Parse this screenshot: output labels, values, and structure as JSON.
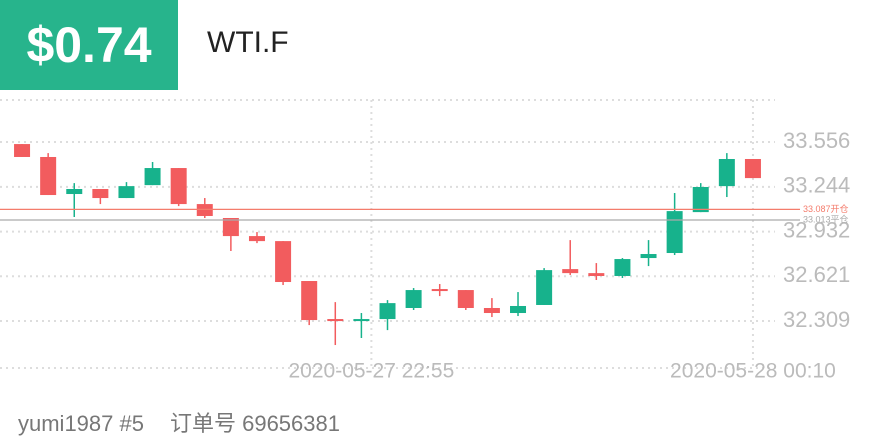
{
  "header": {
    "amount": "$0.74",
    "symbol": "WTI.F"
  },
  "footer": {
    "user": "yumi1987 #5",
    "order": "订单号 69656381"
  },
  "chart_data": {
    "type": "candlestick",
    "up_color": "#17b28c",
    "down_color": "#f25c5e",
    "categories": [
      null,
      null,
      null,
      null,
      null,
      null,
      null,
      null,
      null,
      null,
      null,
      null,
      null,
      "2020-05-27 22:55",
      null,
      null,
      null,
      null,
      null,
      null,
      null,
      null,
      null,
      null,
      null,
      null,
      null,
      null,
      "2020-05-28 00:10"
    ],
    "open": [
      33.542,
      33.452,
      33.194,
      33.229,
      33.166,
      33.256,
      33.375,
      33.124,
      33.027,
      32.901,
      32.866,
      32.588,
      32.323,
      32.309,
      32.323,
      32.4,
      32.532,
      32.525,
      32.4,
      32.365,
      32.421,
      32.671,
      32.643,
      32.623,
      32.748,
      32.783,
      33.068,
      33.249,
      33.438
    ],
    "high": [
      33.542,
      33.479,
      33.27,
      33.229,
      33.277,
      33.417,
      33.375,
      33.166,
      33.027,
      32.929,
      32.866,
      32.588,
      32.441,
      32.365,
      32.455,
      32.539,
      32.567,
      32.525,
      32.469,
      32.511,
      32.678,
      32.873,
      32.713,
      32.748,
      32.873,
      33.201,
      33.27,
      33.479,
      33.438
    ],
    "low": [
      33.452,
      33.187,
      33.034,
      33.124,
      33.166,
      33.256,
      33.11,
      33.027,
      32.797,
      32.852,
      32.56,
      32.281,
      32.142,
      32.191,
      32.246,
      32.386,
      32.483,
      32.386,
      32.337,
      32.344,
      32.421,
      32.63,
      32.595,
      32.609,
      32.692,
      32.769,
      33.068,
      33.173,
      33.305
    ],
    "close": [
      33.452,
      33.187,
      33.229,
      33.166,
      33.249,
      33.375,
      33.124,
      33.041,
      32.901,
      32.866,
      32.581,
      32.316,
      32.309,
      32.323,
      32.434,
      32.525,
      32.518,
      32.4,
      32.365,
      32.414,
      32.664,
      32.643,
      32.623,
      32.741,
      32.776,
      33.075,
      33.243,
      33.438,
      33.305
    ],
    "ylim": [
      31.982,
      33.849
    ],
    "yticks": [
      32.309,
      32.621,
      32.932,
      33.244,
      33.556
    ],
    "ref_lines": [
      {
        "value": 33.087,
        "label": "33.087开仓",
        "color": "#f47c6c"
      },
      {
        "value": 33.013,
        "label": "33.013平仓",
        "color": "#aaaaaa"
      }
    ],
    "grid": true
  }
}
